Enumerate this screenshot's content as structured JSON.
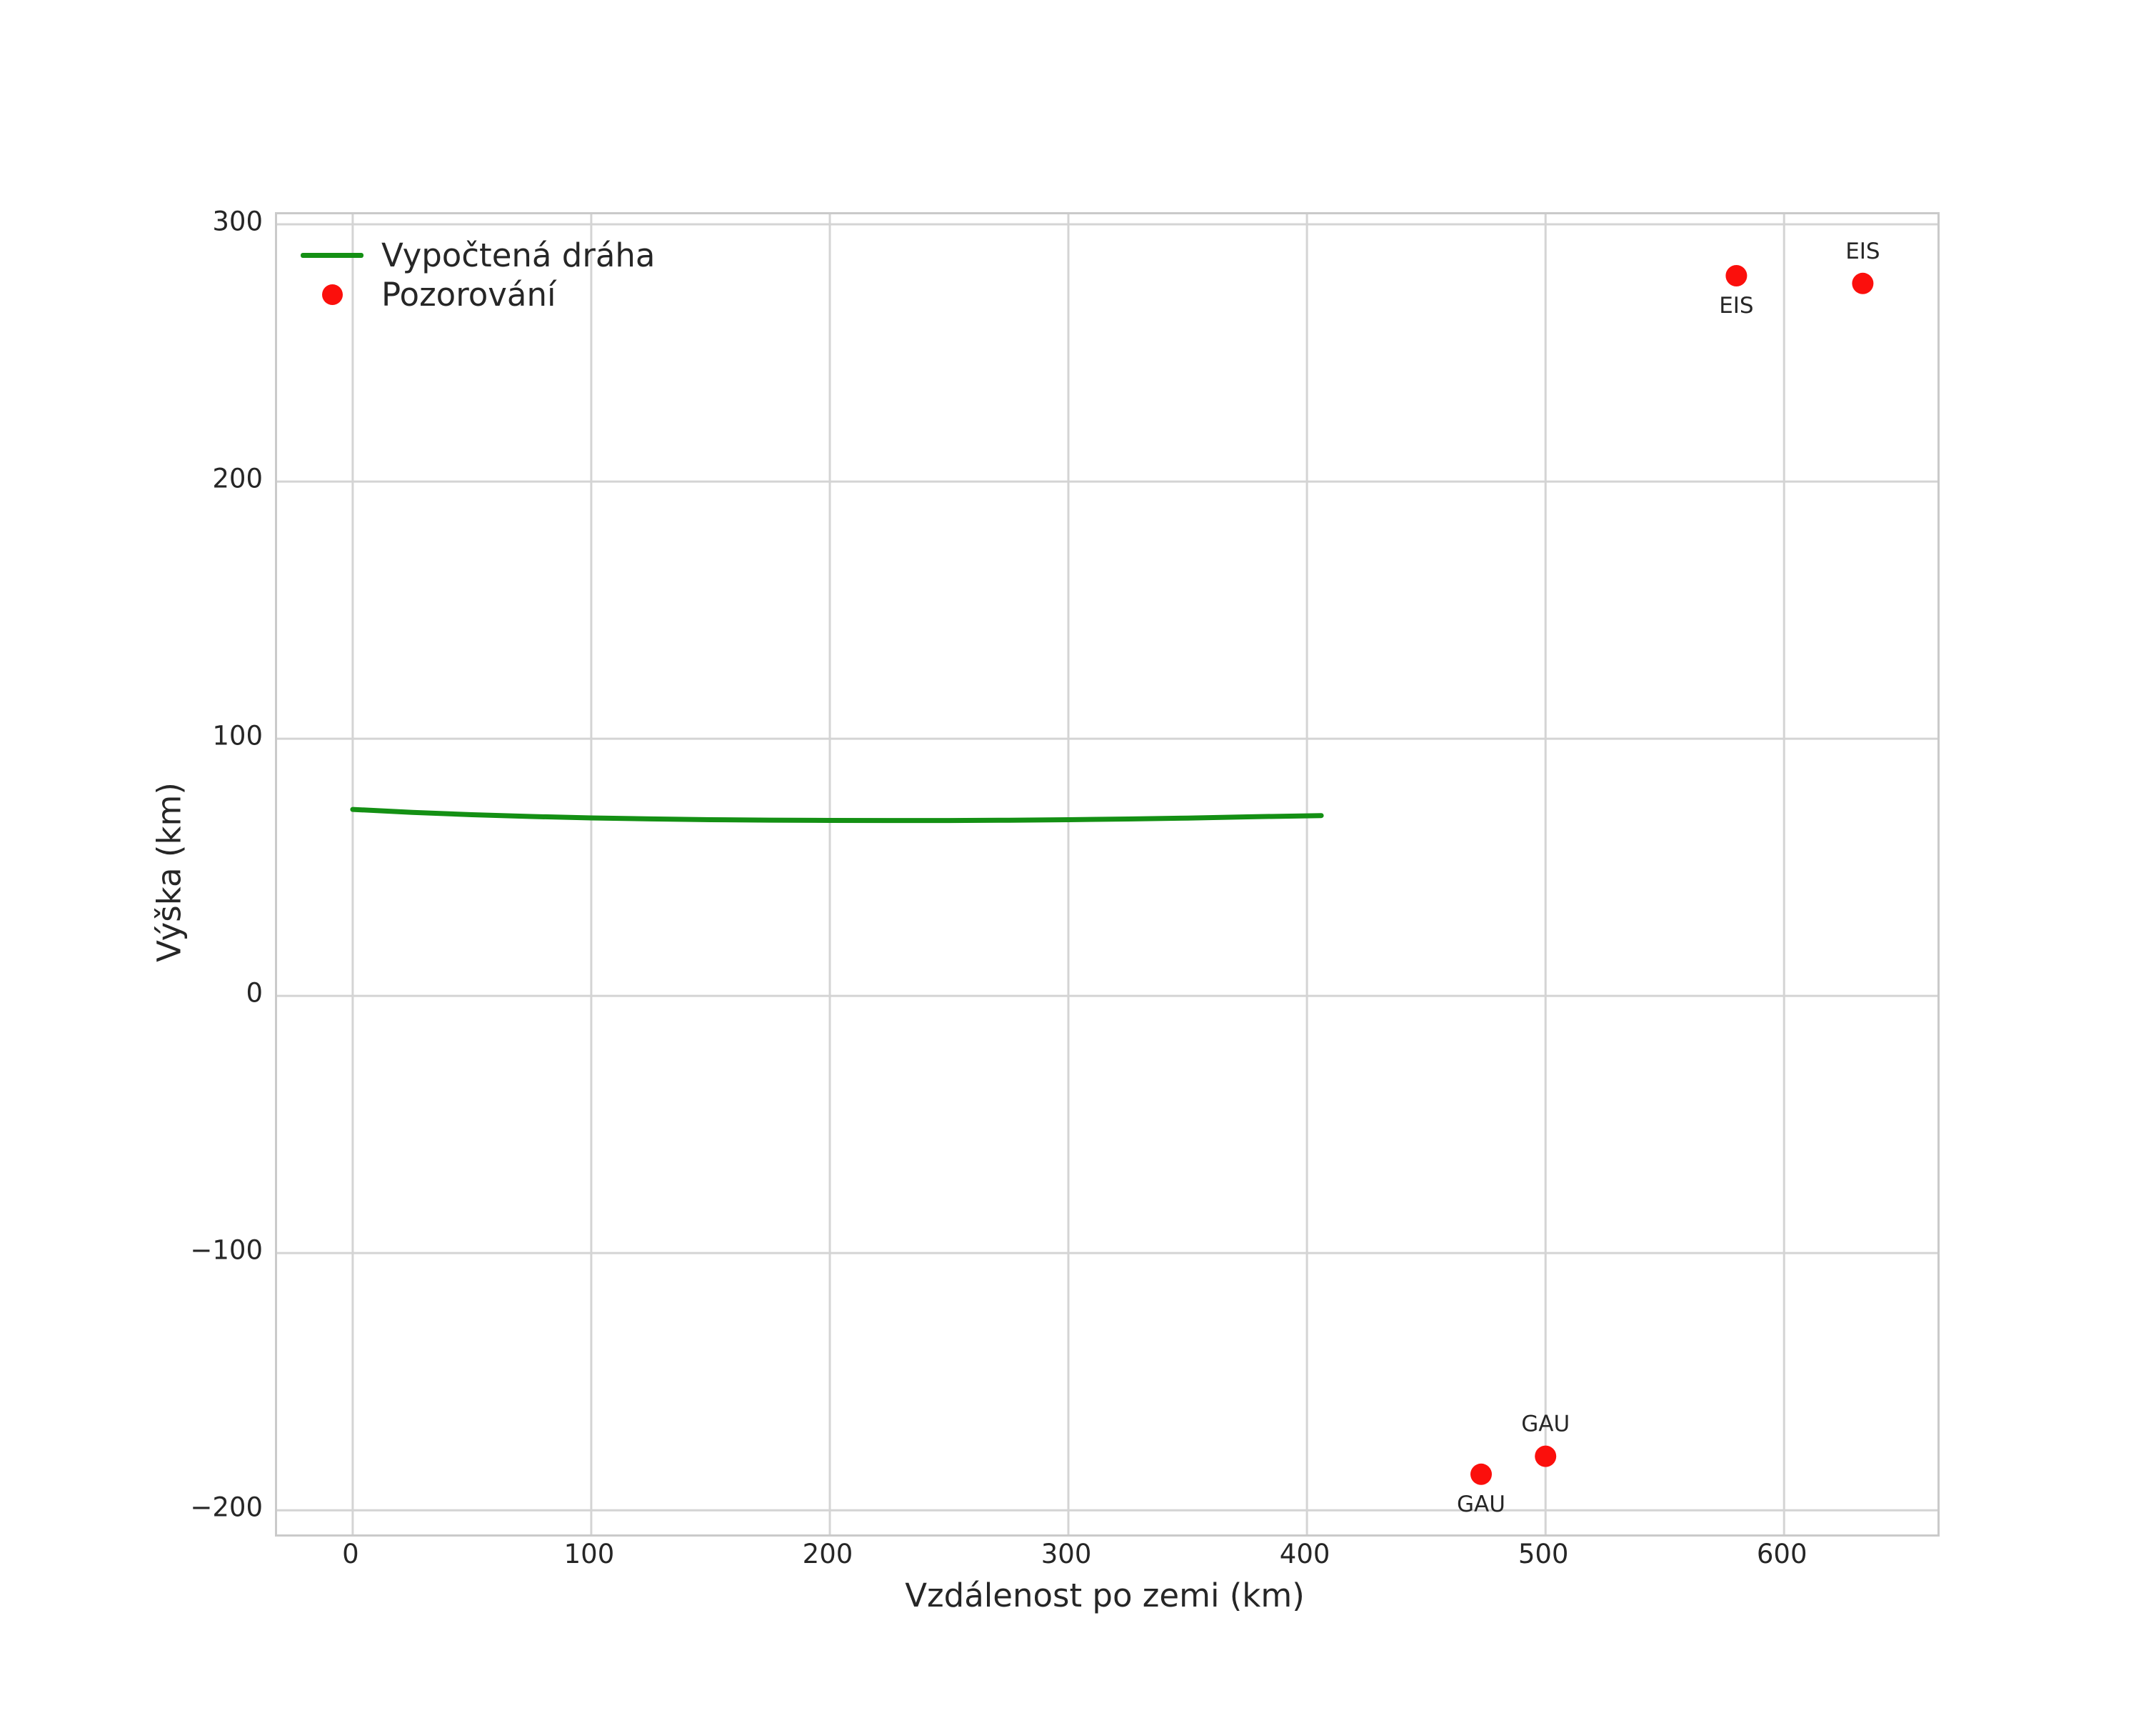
{
  "figure": {
    "background": "#ffffff"
  },
  "style": {
    "grid_color": "#d4d4d4",
    "spine_color": "#cacaca",
    "text_color": "#262626"
  },
  "chart_data": {
    "type": "line",
    "title": "",
    "xlabel": "Vzdálenost po zemi (km)",
    "ylabel": "Výška (km)",
    "xlim": [
      -31.7,
      664.3
    ],
    "ylim": [
      -209.4,
      303.9
    ],
    "x_ticks": [
      0,
      100,
      200,
      300,
      400,
      500,
      600
    ],
    "y_ticks": [
      300,
      200,
      100,
      0,
      -100,
      -200
    ],
    "grid": true,
    "legend": {
      "position": "upper-left",
      "entries": [
        {
          "label": "Vypočtená dráha",
          "marker": "line",
          "color": "#149014"
        },
        {
          "label": "Pozorování",
          "marker": "dot",
          "color": "#fb0f0c"
        }
      ]
    },
    "series": [
      {
        "name": "Vypočtená dráha",
        "type": "line",
        "color": "#149014",
        "stroke_width": 7,
        "points": [
          [
            0,
            72.5
          ],
          [
            25,
            71.35
          ],
          [
            50,
            70.45
          ],
          [
            75,
            69.75
          ],
          [
            100,
            69.2
          ],
          [
            125,
            68.8
          ],
          [
            150,
            68.5
          ],
          [
            175,
            68.32
          ],
          [
            200,
            68.22
          ],
          [
            225,
            68.18
          ],
          [
            250,
            68.2
          ],
          [
            275,
            68.3
          ],
          [
            300,
            68.5
          ],
          [
            325,
            68.78
          ],
          [
            350,
            69.15
          ],
          [
            375,
            69.6
          ],
          [
            406,
            70.1
          ]
        ]
      },
      {
        "name": "Pozorování",
        "type": "scatter",
        "color": "#fb0f0c",
        "radius": 15,
        "points": [
          {
            "x": 473,
            "y": -186,
            "label": "GAU",
            "label_pos": "below"
          },
          {
            "x": 500,
            "y": -179,
            "label": "GAU",
            "label_pos": "above"
          },
          {
            "x": 580,
            "y": 280,
            "label": "EIS",
            "label_pos": "below"
          },
          {
            "x": 633,
            "y": 277,
            "label": "EIS",
            "label_pos": "above"
          }
        ]
      }
    ],
    "annotation_font_size": 31
  }
}
